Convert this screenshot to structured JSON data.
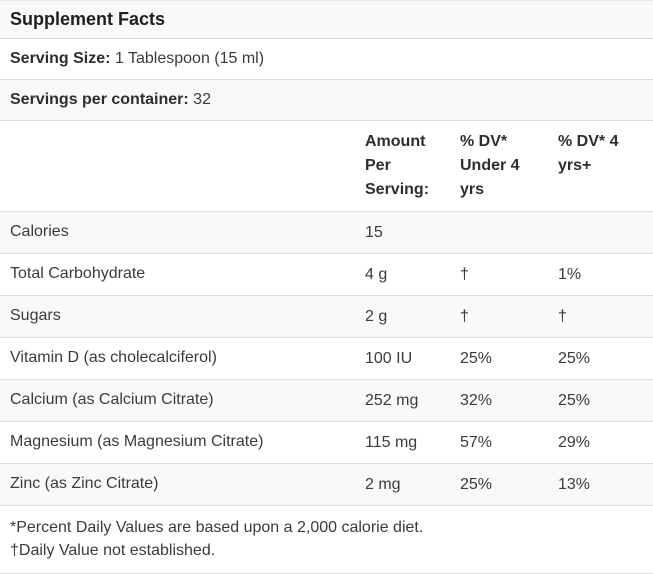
{
  "title": "Supplement Facts",
  "serving_size": {
    "label": "Serving Size:",
    "value": "1 Tablespoon (15 ml)"
  },
  "servings_per_container": {
    "label": "Servings per container:",
    "value": "32"
  },
  "header": {
    "amount": "Amount Per Serving:",
    "dv_under4": "% DV* Under 4 yrs",
    "dv_4plus": "% DV* 4 yrs+"
  },
  "rows": [
    {
      "name": "Calories",
      "amount": "15",
      "dv_under4": "",
      "dv_4plus": ""
    },
    {
      "name": "Total Carbohydrate",
      "amount": "4 g",
      "dv_under4": "†",
      "dv_4plus": "1%"
    },
    {
      "name": "Sugars",
      "amount": "2 g",
      "dv_under4": "†",
      "dv_4plus": "†"
    },
    {
      "name": "Vitamin D (as cholecalciferol)",
      "amount": "100 IU",
      "dv_under4": "25%",
      "dv_4plus": "25%"
    },
    {
      "name": "Calcium (as Calcium Citrate)",
      "amount": "252 mg",
      "dv_under4": "32%",
      "dv_4plus": "25%"
    },
    {
      "name": "Magnesium (as Magnesium Citrate)",
      "amount": "115 mg",
      "dv_under4": "57%",
      "dv_4plus": "29%"
    },
    {
      "name": "Zinc (as Zinc Citrate)",
      "amount": "2 mg",
      "dv_under4": "25%",
      "dv_4plus": "13%"
    }
  ],
  "footnotes": [
    "*Percent Daily Values are based upon a 2,000 calorie diet.",
    "†Daily Value not established."
  ],
  "colors": {
    "stripe_background": "#f9f9f9",
    "row_divider": "#dddddd",
    "text": "#3b3b3b",
    "bold_text": "#2e2e2e"
  }
}
